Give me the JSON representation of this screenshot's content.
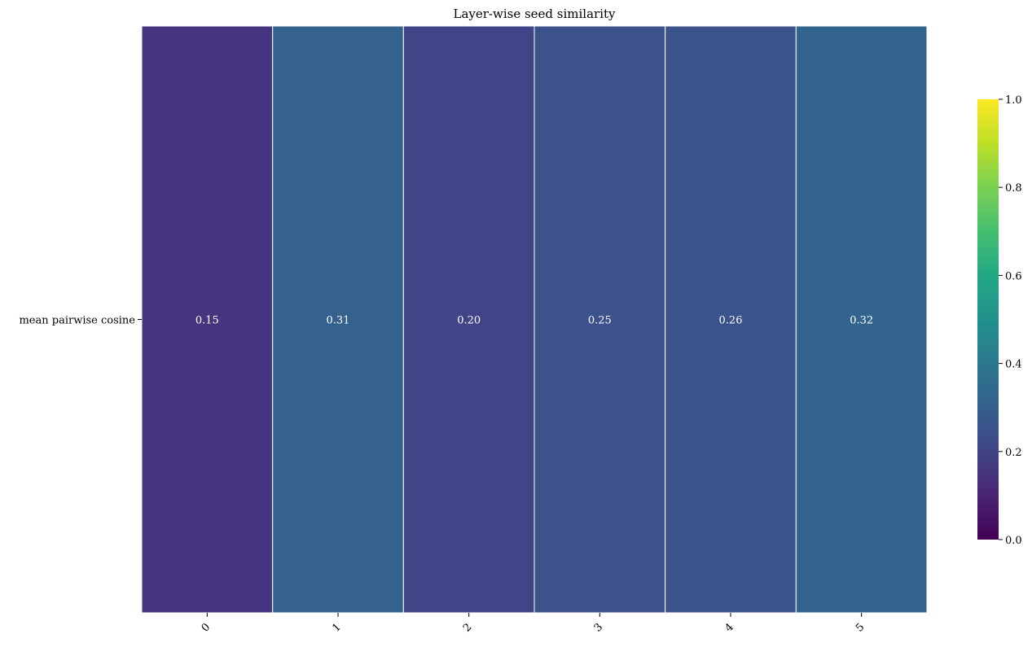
{
  "chart_data": {
    "type": "heatmap",
    "title": "Layer-wise seed similarity",
    "x_categories": [
      "0",
      "1",
      "2",
      "3",
      "4",
      "5"
    ],
    "y_categories": [
      "mean pairwise cosine"
    ],
    "values": [
      [
        0.15,
        0.31,
        0.2,
        0.25,
        0.26,
        0.32
      ]
    ],
    "cell_labels": [
      [
        "0.15",
        "0.31",
        "0.20",
        "0.25",
        "0.26",
        "0.32"
      ]
    ],
    "colormap": "viridis",
    "vmin": 0.0,
    "vmax": 1.0,
    "colorbar": {
      "ticks": [
        0.0,
        0.2,
        0.4,
        0.6,
        0.8,
        1.0
      ],
      "tick_labels": [
        "0.0",
        "0.2",
        "0.4",
        "0.6",
        "0.8",
        "1.0"
      ]
    },
    "cell_text_color": "#ffffff",
    "grid_line_color": "#ffffff"
  }
}
